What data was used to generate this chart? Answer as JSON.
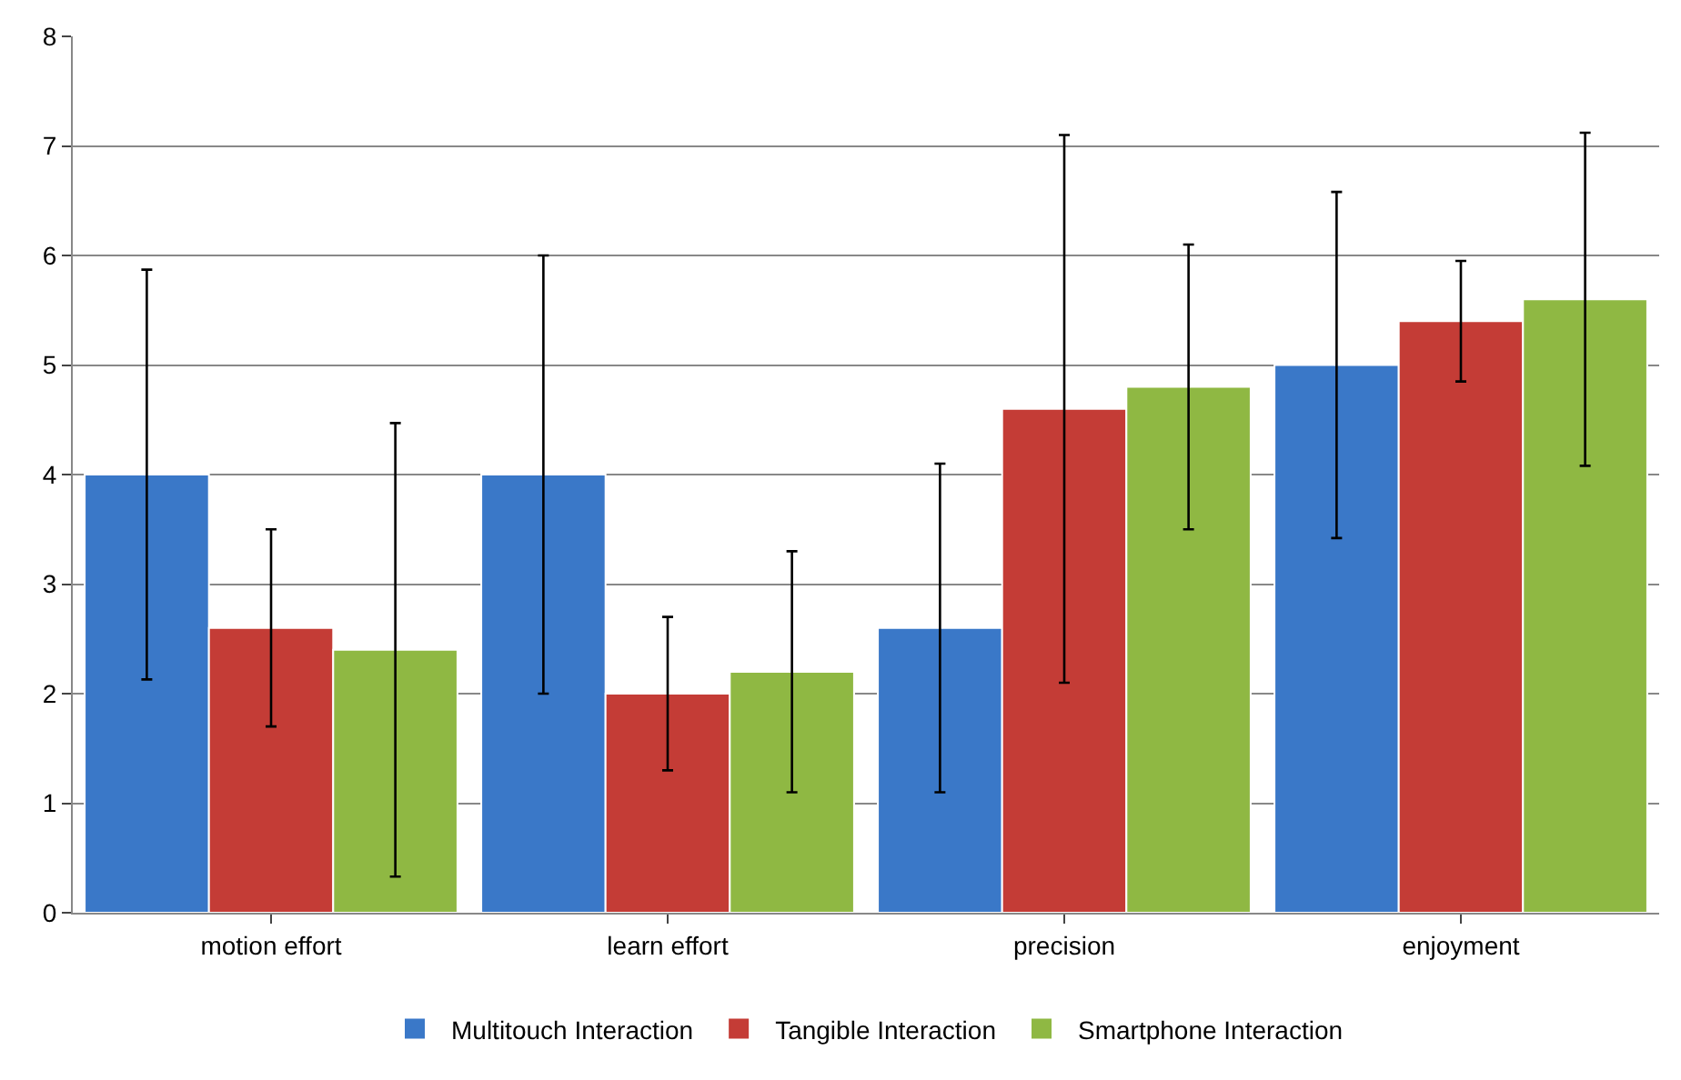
{
  "chart_data": {
    "type": "bar",
    "categories": [
      "motion effort",
      "learn effort",
      "precision",
      "enjoyment"
    ],
    "series": [
      {
        "name": "Multitouch Interaction",
        "color": "#3a78c8",
        "values": [
          4.0,
          4.0,
          2.6,
          5.0
        ],
        "errors": [
          1.87,
          2.0,
          1.5,
          1.58
        ]
      },
      {
        "name": "Tangible Interaction",
        "color": "#c43c36",
        "values": [
          2.6,
          2.0,
          4.6,
          5.4
        ],
        "errors": [
          0.9,
          0.7,
          2.5,
          0.55
        ]
      },
      {
        "name": "Smartphone Interaction",
        "color": "#8fb843",
        "values": [
          2.4,
          2.2,
          4.8,
          5.6
        ],
        "errors": [
          2.07,
          1.1,
          1.3,
          1.52
        ]
      }
    ],
    "ylim": [
      0,
      8
    ],
    "yticks": [
      0,
      1,
      2,
      3,
      4,
      5,
      6,
      7,
      8
    ],
    "grid": "y",
    "legend": "bottom"
  }
}
